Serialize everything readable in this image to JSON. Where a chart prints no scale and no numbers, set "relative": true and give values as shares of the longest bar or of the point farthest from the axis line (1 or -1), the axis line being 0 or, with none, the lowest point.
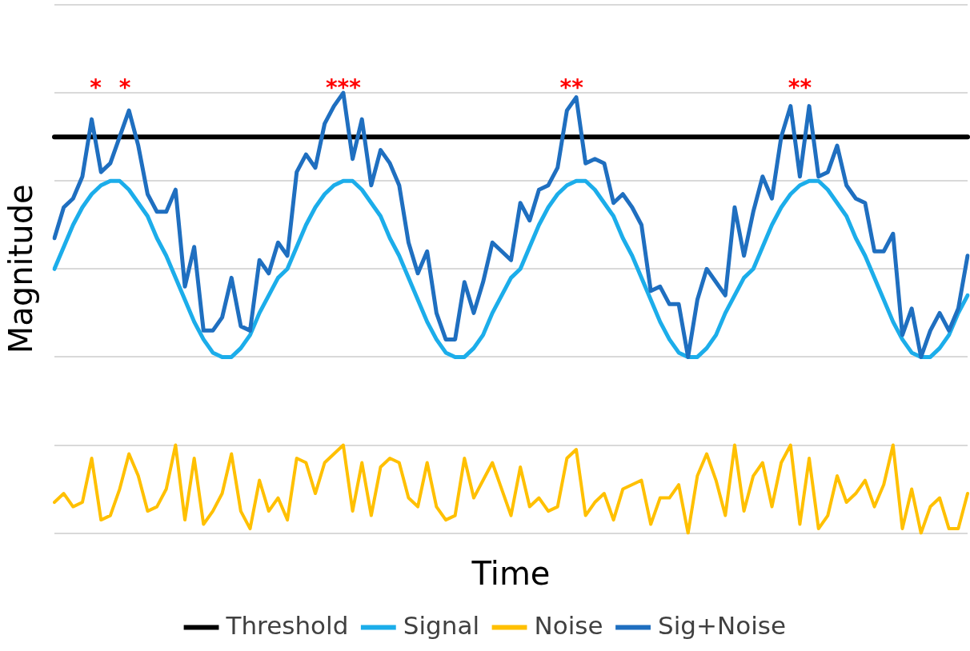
{
  "chart_data": {
    "type": "line",
    "relative": true,
    "xlabel": "Time",
    "ylabel": "Magnitude",
    "categories": [
      null,
      null,
      null,
      null,
      null,
      null,
      null,
      null,
      null,
      null,
      null,
      null,
      null,
      null,
      null,
      null,
      null,
      null,
      null,
      null,
      null,
      null,
      null,
      null,
      null,
      null,
      null,
      null,
      null,
      null,
      null,
      null,
      null,
      null,
      null,
      null,
      null,
      null,
      null,
      null,
      null,
      null,
      null,
      null,
      null,
      null,
      null,
      null,
      null,
      null,
      null,
      null,
      null,
      null,
      null,
      null,
      null,
      null,
      null,
      null,
      null,
      null,
      null,
      null,
      null,
      null,
      null,
      null,
      null,
      null,
      null,
      null,
      null,
      null,
      null,
      null,
      null,
      null,
      null,
      null,
      null,
      null,
      null,
      null,
      null,
      null,
      null,
      null,
      null,
      null,
      null,
      null,
      null,
      null,
      null,
      null,
      null,
      null,
      null
    ],
    "series": [
      {
        "name": "Threshold",
        "color": "#000000",
        "values": [
          0.9,
          0.9,
          0.9,
          0.9,
          0.9,
          0.9,
          0.9,
          0.9,
          0.9,
          0.9,
          0.9,
          0.9,
          0.9,
          0.9,
          0.9,
          0.9,
          0.9,
          0.9,
          0.9,
          0.9,
          0.9,
          0.9,
          0.9,
          0.9,
          0.9,
          0.9,
          0.9,
          0.9,
          0.9,
          0.9,
          0.9,
          0.9,
          0.9,
          0.9,
          0.9,
          0.9,
          0.9,
          0.9,
          0.9,
          0.9,
          0.9,
          0.9,
          0.9,
          0.9,
          0.9,
          0.9,
          0.9,
          0.9,
          0.9,
          0.9,
          0.9,
          0.9,
          0.9,
          0.9,
          0.9,
          0.9,
          0.9,
          0.9,
          0.9,
          0.9,
          0.9,
          0.9,
          0.9,
          0.9,
          0.9,
          0.9,
          0.9,
          0.9,
          0.9,
          0.9,
          0.9,
          0.9,
          0.9,
          0.9,
          0.9,
          0.9,
          0.9,
          0.9,
          0.9,
          0.9,
          0.9,
          0.9,
          0.9,
          0.9,
          0.9,
          0.9,
          0.9,
          0.9,
          0.9,
          0.9,
          0.9,
          0.9,
          0.9,
          0.9,
          0.9,
          0.9,
          0.9,
          0.9,
          0.9
        ]
      },
      {
        "name": "Signal",
        "color": "#1cadea",
        "values": [
          0.6,
          0.65,
          0.7,
          0.74,
          0.77,
          0.79,
          0.8,
          0.8,
          0.78,
          0.75,
          0.72,
          0.67,
          0.63,
          0.58,
          0.53,
          0.48,
          0.44,
          0.41,
          0.4,
          0.4,
          0.42,
          0.45,
          0.5,
          0.54,
          0.58,
          0.6,
          0.65,
          0.7,
          0.74,
          0.77,
          0.79,
          0.8,
          0.8,
          0.78,
          0.75,
          0.72,
          0.67,
          0.63,
          0.58,
          0.53,
          0.48,
          0.44,
          0.41,
          0.4,
          0.4,
          0.42,
          0.45,
          0.5,
          0.54,
          0.58,
          0.6,
          0.65,
          0.7,
          0.74,
          0.77,
          0.79,
          0.8,
          0.8,
          0.78,
          0.75,
          0.72,
          0.67,
          0.63,
          0.58,
          0.53,
          0.48,
          0.44,
          0.41,
          0.4,
          0.4,
          0.42,
          0.45,
          0.5,
          0.54,
          0.58,
          0.6,
          0.65,
          0.7,
          0.74,
          0.77,
          0.79,
          0.8,
          0.8,
          0.78,
          0.75,
          0.72,
          0.67,
          0.63,
          0.58,
          0.53,
          0.48,
          0.44,
          0.41,
          0.4,
          0.4,
          0.42,
          0.45,
          0.5,
          0.54
        ]
      },
      {
        "name": "Noise",
        "color": "#ffc000",
        "values": [
          0.07,
          0.09,
          0.06,
          0.07,
          0.17,
          0.03,
          0.04,
          0.1,
          0.18,
          0.13,
          0.05,
          0.06,
          0.1,
          0.2,
          0.03,
          0.17,
          0.02,
          0.05,
          0.09,
          0.18,
          0.05,
          0.01,
          0.12,
          0.05,
          0.08,
          0.03,
          0.17,
          0.16,
          0.09,
          0.16,
          0.18,
          0.2,
          0.05,
          0.16,
          0.04,
          0.15,
          0.17,
          0.16,
          0.08,
          0.06,
          0.16,
          0.06,
          0.03,
          0.04,
          0.17,
          0.08,
          0.12,
          0.16,
          0.1,
          0.04,
          0.15,
          0.06,
          0.08,
          0.05,
          0.06,
          0.17,
          0.19,
          0.04,
          0.07,
          0.09,
          0.03,
          0.1,
          0.11,
          0.12,
          0.02,
          0.08,
          0.08,
          0.11,
          0,
          0.13,
          0.18,
          0.12,
          0.04,
          0.2,
          0.05,
          0.13,
          0.16,
          0.06,
          0.16,
          0.2,
          0.02,
          0.17,
          0.01,
          0.04,
          0.13,
          0.07,
          0.09,
          0.12,
          0.06,
          0.11,
          0.2,
          0.01,
          0.1,
          0,
          0.06,
          0.08,
          0.01,
          0.01,
          0.09
        ]
      },
      {
        "name": "Sig+Noise",
        "color": "#1f6fc0",
        "values": [
          0.67,
          0.74,
          0.76,
          0.81,
          0.94,
          0.82,
          0.84,
          0.9,
          0.96,
          0.88,
          0.77,
          0.73,
          0.73,
          0.78,
          0.56,
          0.65,
          0.46,
          0.46,
          0.49,
          0.58,
          0.47,
          0.46,
          0.62,
          0.59,
          0.66,
          0.63,
          0.82,
          0.86,
          0.83,
          0.93,
          0.97,
          1.0,
          0.85,
          0.94,
          0.79,
          0.87,
          0.84,
          0.79,
          0.66,
          0.59,
          0.64,
          0.5,
          0.44,
          0.44,
          0.57,
          0.5,
          0.57,
          0.66,
          0.64,
          0.62,
          0.75,
          0.71,
          0.78,
          0.79,
          0.83,
          0.96,
          0.99,
          0.84,
          0.85,
          0.84,
          0.75,
          0.77,
          0.74,
          0.7,
          0.55,
          0.56,
          0.52,
          0.52,
          0.4,
          0.53,
          0.6,
          0.57,
          0.54,
          0.74,
          0.63,
          0.73,
          0.81,
          0.76,
          0.9,
          0.97,
          0.81,
          0.97,
          0.81,
          0.82,
          0.88,
          0.79,
          0.76,
          0.75,
          0.64,
          0.64,
          0.68,
          0.45,
          0.51,
          0.4,
          0.46,
          0.5,
          0.46,
          0.51,
          0.63
        ]
      }
    ],
    "annotations": [
      "* *",
      "***",
      "**",
      "**"
    ],
    "grid": "y",
    "legend": "bottom",
    "marker": "none",
    "line_style": "solid"
  }
}
